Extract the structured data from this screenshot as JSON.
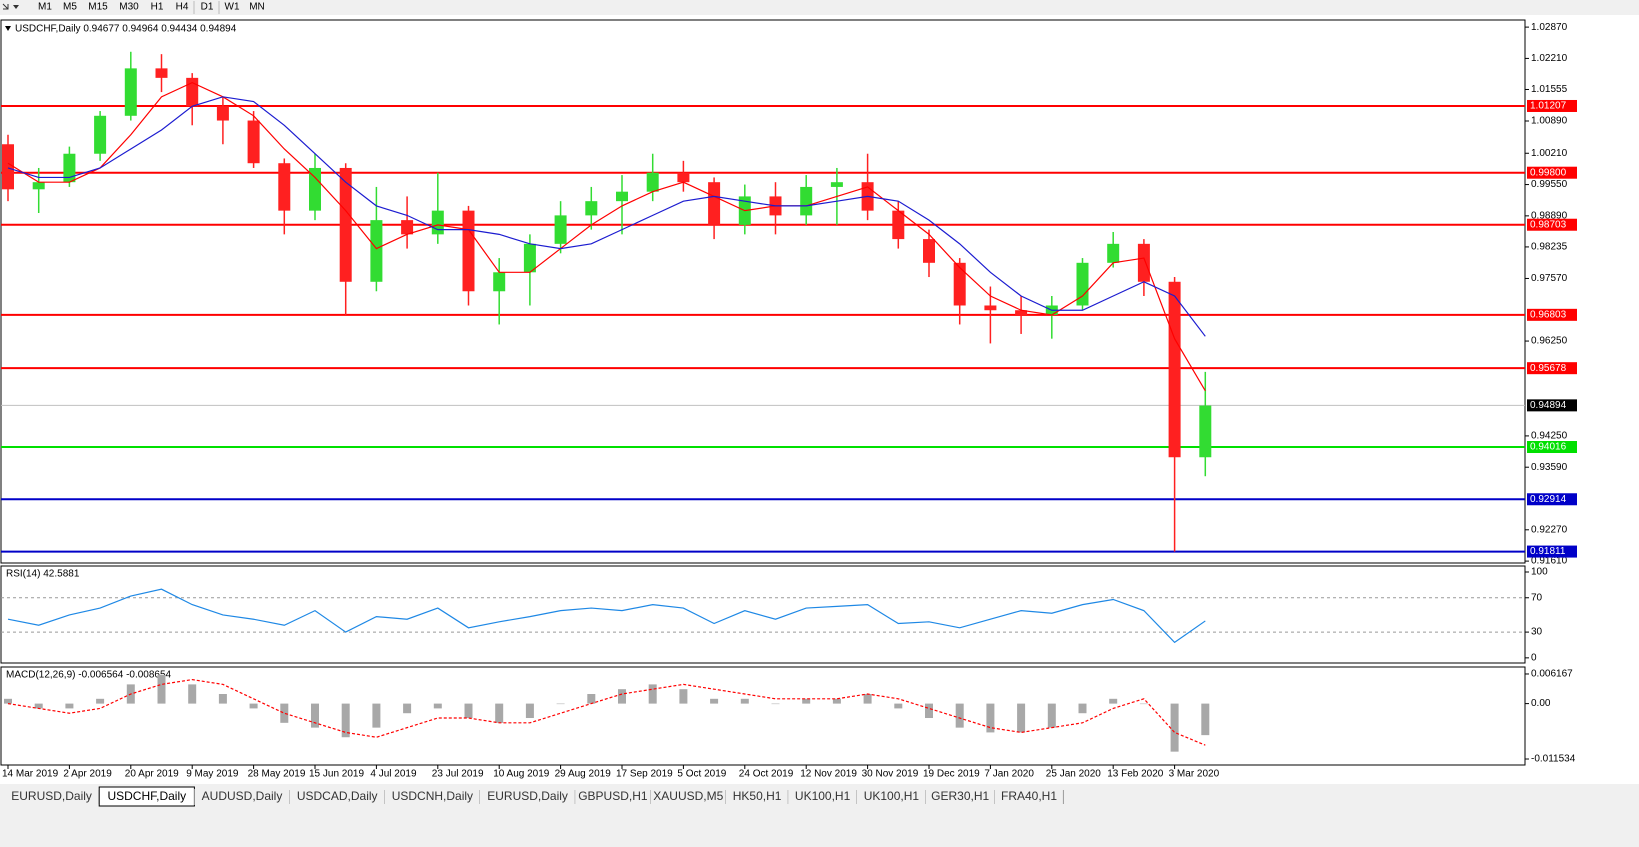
{
  "toolbar": {
    "timeframes": [
      "M1",
      "M5",
      "M15",
      "M30",
      "H1",
      "H4",
      "D1",
      "W1",
      "MN"
    ]
  },
  "chart_data": [
    {
      "type": "candlestick",
      "header": "USDCHF,Daily  0.94677 0.94964 0.94434 0.94894",
      "categories": [
        "14 Mar 2019",
        null,
        "2 Apr 2019",
        null,
        "20 Apr 2019",
        null,
        "9 May 2019",
        null,
        "28 May 2019",
        null,
        "15 Jun 2019",
        null,
        "4 Jul 2019",
        null,
        "23 Jul 2019",
        null,
        "10 Aug 2019",
        null,
        "29 Aug 2019",
        null,
        "17 Sep 2019",
        null,
        "5 Oct 2019",
        null,
        "24 Oct 2019",
        null,
        "12 Nov 2019",
        null,
        "30 Nov 2019",
        null,
        "19 Dec 2019",
        null,
        "7 Jan 2020",
        null,
        "25 Jan 2020",
        null,
        "13 Feb 2020",
        null,
        "3 Mar 2020",
        null
      ],
      "open": [
        1.004,
        0.9945,
        0.996,
        1.002,
        1.01,
        1.02,
        1.018,
        1.012,
        1.009,
        1.0,
        0.99,
        0.999,
        0.975,
        0.988,
        0.985,
        0.99,
        0.973,
        0.977,
        0.983,
        0.989,
        0.992,
        0.994,
        0.998,
        0.996,
        0.987,
        0.993,
        0.989,
        0.995,
        0.996,
        0.99,
        0.984,
        0.979,
        0.97,
        0.969,
        0.968,
        0.97,
        0.979,
        0.983,
        0.975,
        0.938
      ],
      "high": [
        1.006,
        0.999,
        1.0035,
        1.011,
        1.0235,
        1.023,
        1.019,
        1.014,
        1.011,
        1.001,
        1.002,
        1.0,
        0.995,
        0.993,
        0.998,
        0.991,
        0.98,
        0.985,
        0.992,
        0.995,
        0.9975,
        1.002,
        1.0005,
        0.997,
        0.9955,
        0.996,
        0.9975,
        0.999,
        1.002,
        0.992,
        0.986,
        0.98,
        0.974,
        0.972,
        0.972,
        0.98,
        0.9855,
        0.984,
        0.976,
        0.956
      ],
      "low": [
        0.992,
        0.9895,
        0.995,
        1.0005,
        1.009,
        1.015,
        1.008,
        1.004,
        0.999,
        0.985,
        0.988,
        0.968,
        0.973,
        0.982,
        0.983,
        0.97,
        0.966,
        0.97,
        0.981,
        0.986,
        0.985,
        0.992,
        0.994,
        0.984,
        0.985,
        0.985,
        0.987,
        0.987,
        0.988,
        0.982,
        0.976,
        0.966,
        0.962,
        0.964,
        0.963,
        0.969,
        0.978,
        0.972,
        0.9181,
        0.934
      ],
      "close": [
        0.9945,
        0.996,
        1.002,
        1.01,
        1.02,
        1.018,
        1.012,
        1.009,
        1.0,
        0.99,
        0.999,
        0.975,
        0.988,
        0.985,
        0.99,
        0.973,
        0.977,
        0.983,
        0.989,
        0.992,
        0.994,
        0.998,
        0.996,
        0.987,
        0.993,
        0.989,
        0.995,
        0.996,
        0.99,
        0.984,
        0.979,
        0.97,
        0.969,
        0.968,
        0.97,
        0.979,
        0.983,
        0.975,
        0.938,
        0.9489
      ],
      "up_color": "#32dc32",
      "down_color": "#ff2020",
      "moving_averages": [
        {
          "color": "#ff0000",
          "values": [
            1.0,
            0.996,
            0.996,
            0.999,
            1.006,
            1.014,
            1.017,
            1.014,
            1.01,
            1.003,
            0.997,
            0.99,
            0.982,
            0.985,
            0.987,
            0.986,
            0.977,
            0.977,
            0.982,
            0.987,
            0.991,
            0.994,
            0.996,
            0.993,
            0.99,
            0.991,
            0.991,
            0.993,
            0.995,
            0.99,
            0.985,
            0.978,
            0.972,
            0.969,
            0.968,
            0.972,
            0.979,
            0.98,
            0.963,
            0.952
          ]
        },
        {
          "color": "#1c1cd0",
          "values": [
            0.999,
            0.997,
            0.997,
            0.999,
            1.003,
            1.007,
            1.012,
            1.014,
            1.013,
            1.008,
            1.002,
            0.996,
            0.991,
            0.989,
            0.986,
            0.986,
            0.985,
            0.983,
            0.982,
            0.983,
            0.986,
            0.989,
            0.992,
            0.993,
            0.992,
            0.991,
            0.991,
            0.992,
            0.993,
            0.992,
            0.988,
            0.983,
            0.977,
            0.972,
            0.969,
            0.969,
            0.972,
            0.975,
            0.972,
            0.9635
          ]
        }
      ],
      "levels": [
        {
          "value": 1.01207,
          "color": "#ff0000"
        },
        {
          "value": 0.998,
          "label": "0.99800",
          "color": "#ff0000"
        },
        {
          "value": 0.98703,
          "color": "#ff0000"
        },
        {
          "value": 0.96803,
          "color": "#ff0000"
        },
        {
          "value": 0.95678,
          "color": "#ff0000"
        },
        {
          "value": 0.94894,
          "color": "#c0c0c0",
          "box": "#000000"
        },
        {
          "value": 0.94016,
          "color": "#00e000"
        },
        {
          "value": 0.92914,
          "color": "#0000c8"
        },
        {
          "value": 0.91811,
          "color": "#0000c8"
        }
      ],
      "ylim": [
        0.9157,
        1.0302
      ],
      "yticks": [
        {
          "value": 1.0287,
          "label": "1.02870"
        },
        {
          "value": 1.0221,
          "label": "1.02210"
        },
        1.01555,
        {
          "value": 1.0089,
          "label": "1.00890"
        },
        {
          "value": 1.0021,
          "label": "1.00210"
        },
        {
          "value": 0.9955,
          "label": "0.99550"
        },
        {
          "value": 0.9889,
          "label": "0.98890"
        },
        0.98235,
        {
          "value": 0.9757,
          "label": "0.97570"
        },
        {
          "value": 0.9625,
          "label": "0.96250"
        },
        {
          "value": 0.9425,
          "label": "0.94250"
        },
        {
          "value": 0.9359,
          "label": "0.93590"
        },
        {
          "value": 0.9227,
          "label": "0.92270"
        },
        {
          "value": 0.9161,
          "label": "0.91610"
        }
      ]
    },
    {
      "type": "line",
      "title": "RSI(14) 42.5881",
      "color": "#1e88e5",
      "values": [
        45,
        38,
        50,
        58,
        72,
        80,
        62,
        50,
        45,
        38,
        55,
        30,
        48,
        45,
        58,
        35,
        42,
        48,
        55,
        58,
        55,
        62,
        58,
        40,
        55,
        45,
        58,
        60,
        62,
        40,
        42,
        35,
        45,
        55,
        52,
        62,
        68,
        55,
        18,
        43
      ],
      "ylim": [
        -6,
        107
      ],
      "yticks": [
        100,
        70,
        30,
        0
      ],
      "levels": [
        70,
        30
      ]
    },
    {
      "type": "macd",
      "title": "MACD(12,26,9) -0.006564 -0.008654",
      "histogram_color": "#a8a8a8",
      "signal_color": "#ff0000",
      "histogram": [
        0.001,
        -0.001,
        -0.001,
        0.001,
        0.004,
        0.006,
        0.004,
        0.002,
        -0.001,
        -0.004,
        -0.005,
        -0.007,
        -0.005,
        -0.002,
        -0.001,
        -0.003,
        -0.004,
        -0.003,
        0.0,
        0.002,
        0.003,
        0.004,
        0.003,
        0.001,
        0.001,
        0.0,
        0.001,
        0.001,
        0.002,
        -0.001,
        -0.003,
        -0.005,
        -0.006,
        -0.006,
        -0.005,
        -0.002,
        0.001,
        0.0,
        -0.01,
        -0.006564
      ],
      "signal": [
        0.0,
        -0.001,
        -0.002,
        -0.001,
        0.002,
        0.004,
        0.005,
        0.004,
        0.001,
        -0.002,
        -0.004,
        -0.006,
        -0.007,
        -0.005,
        -0.003,
        -0.003,
        -0.004,
        -0.004,
        -0.002,
        0.0,
        0.002,
        0.003,
        0.004,
        0.003,
        0.002,
        0.001,
        0.001,
        0.001,
        0.002,
        0.001,
        -0.001,
        -0.003,
        -0.005,
        -0.006,
        -0.005,
        -0.004,
        -0.001,
        0.001,
        -0.006,
        -0.008654
      ],
      "ylim": [
        -0.01278,
        0.00762
      ],
      "yticks": [
        0.006167,
        {
          "value": 0,
          "label": "0.00"
        },
        -0.011534
      ]
    }
  ],
  "tabs": [
    "EURUSD,Daily",
    "USDCHF,Daily",
    "AUDUSD,Daily",
    "USDCAD,Daily",
    "USDCNH,Daily",
    "EURUSD,Daily",
    "GBPUSD,H1",
    "XAUUSD,M5",
    "HK50,H1",
    "UK100,H1",
    "UK100,H1",
    "GER30,H1",
    "FRA40,H1"
  ],
  "active_tab": 1
}
